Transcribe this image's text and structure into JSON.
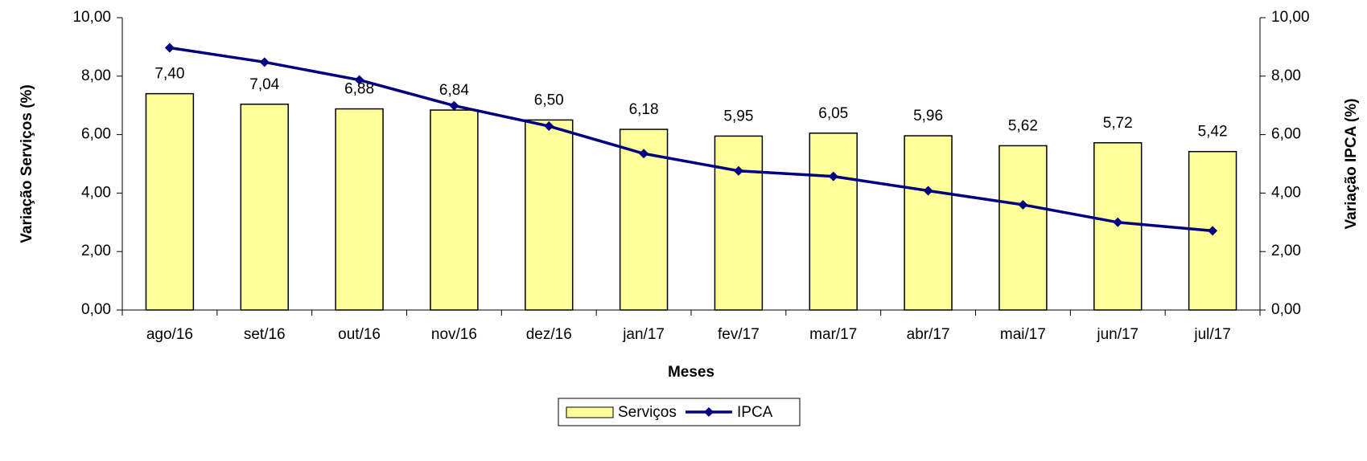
{
  "chart_data": {
    "type": "bar_line",
    "x_label": "Meses",
    "y_label": "Variação Serviços (%)",
    "y2_label": "Variação IPCA (%)",
    "categories": [
      "ago/16",
      "set/16",
      "out/16",
      "nov/16",
      "dez/16",
      "jan/17",
      "fev/17",
      "mar/17",
      "abr/17",
      "mai/17",
      "jun/17",
      "jul/17"
    ],
    "series": [
      {
        "name": "Serviços",
        "type": "bar",
        "color": "#ffff99",
        "values": [
          7.4,
          7.04,
          6.88,
          6.84,
          6.5,
          6.18,
          5.95,
          6.05,
          5.96,
          5.62,
          5.72,
          5.42
        ],
        "value_labels": [
          "7,40",
          "7,04",
          "6,88",
          "6,84",
          "6,50",
          "6,18",
          "5,95",
          "6,05",
          "5,96",
          "5,62",
          "5,72",
          "5,42"
        ]
      },
      {
        "name": "IPCA",
        "type": "line",
        "axis": "y2",
        "color": "#000080",
        "values": [
          8.97,
          8.48,
          7.87,
          6.99,
          6.29,
          5.35,
          4.76,
          4.57,
          4.08,
          3.6,
          3.0,
          2.71
        ]
      }
    ],
    "ylim": [
      0,
      10
    ],
    "yticks": [
      {
        "value": 0,
        "label": "0,00"
      },
      {
        "value": 2,
        "label": "2,00"
      },
      {
        "value": 4,
        "label": "4,00"
      },
      {
        "value": 6,
        "label": "6,00"
      },
      {
        "value": 8,
        "label": "8,00"
      },
      {
        "value": 10,
        "label": "10,00"
      }
    ],
    "y2lim": [
      0,
      10
    ],
    "y2ticks": [
      {
        "value": 0,
        "label": "0,00"
      },
      {
        "value": 2,
        "label": "2,00"
      },
      {
        "value": 4,
        "label": "4,00"
      },
      {
        "value": 6,
        "label": "6,00"
      },
      {
        "value": 8,
        "label": "8,00"
      },
      {
        "value": 10,
        "label": "10,00"
      }
    ],
    "legend": "bottom"
  }
}
